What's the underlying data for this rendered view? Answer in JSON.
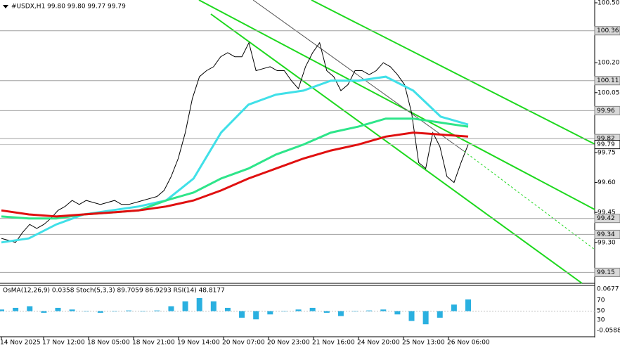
{
  "chart_data": {
    "type": "line",
    "title": "#USDX,H1  99.80 99.80 99.77 99.79",
    "series": [
      {
        "name": "close",
        "color": "#000000",
        "values": [
          99.32,
          99.31,
          99.3,
          99.35,
          99.39,
          99.37,
          99.39,
          99.42,
          99.46,
          99.48,
          99.51,
          99.49,
          99.51,
          99.5,
          99.49,
          99.5,
          99.51,
          99.49,
          99.49,
          99.5,
          99.51,
          99.52,
          99.53,
          99.56,
          99.63,
          99.72,
          99.85,
          100.02,
          100.13,
          100.16,
          100.18,
          100.23,
          100.25,
          100.23,
          100.23,
          100.3,
          100.16,
          100.17,
          100.18,
          100.16,
          100.16,
          100.11,
          100.07,
          100.18,
          100.25,
          100.3,
          100.16,
          100.13,
          100.06,
          100.09,
          100.16,
          100.16,
          100.14,
          100.16,
          100.2,
          100.18,
          100.14,
          100.09,
          99.95,
          99.7,
          99.67,
          99.85,
          99.78,
          99.63,
          99.6,
          99.7,
          99.79
        ]
      },
      {
        "name": "ma-fast",
        "color": "#40e0e8",
        "values": [
          99.3,
          99.32,
          99.39,
          99.44,
          99.46,
          99.48,
          99.51,
          99.62,
          99.85,
          99.99,
          100.04,
          100.06,
          100.11,
          100.11,
          100.13,
          100.06,
          99.93,
          99.89
        ]
      },
      {
        "name": "ma-mid",
        "color": "#2ee58a",
        "values": [
          99.43,
          99.42,
          99.42,
          99.44,
          99.45,
          99.46,
          99.51,
          99.55,
          99.62,
          99.67,
          99.74,
          99.79,
          99.85,
          99.88,
          99.92,
          99.92,
          99.9,
          99.88
        ]
      },
      {
        "name": "ma-slow",
        "color": "#e01010",
        "values": [
          99.46,
          99.44,
          99.43,
          99.44,
          99.45,
          99.46,
          99.48,
          99.51,
          99.56,
          99.62,
          99.67,
          99.72,
          99.76,
          99.79,
          99.83,
          99.85,
          99.84,
          99.83
        ]
      }
    ],
    "ylim": [
      99.095,
      100.514
    ],
    "yticks": [
      {
        "value": 100.5,
        "label": "100.50"
      },
      100.35,
      {
        "value": 100.2,
        "label": "100.20"
      },
      100.05,
      99.75,
      {
        "value": 99.6,
        "label": "99.60"
      },
      99.45,
      {
        "value": 99.3,
        "label": "99.30"
      }
    ],
    "levels": [
      100.36,
      100.11,
      99.96,
      99.82,
      99.42,
      99.34,
      99.15
    ],
    "current_price": 99.79,
    "x_labels": [
      "14 Nov 2025",
      "17 Nov 12:00",
      "18 Nov 05:00",
      "18 Nov 21:00",
      "19 Nov 14:00",
      "20 Nov 07:00",
      "20 Nov 23:00",
      "21 Nov 16:00",
      "24 Nov 20:00",
      "25 Nov 13:00",
      "26 Nov 06:00"
    ],
    "indicator": {
      "title": "OsMA(12,26,9) 0.0358 Stoch(5,3,3) 89.7059 86.9293 RSI(14) 48.8177",
      "color": "#2ab0e0",
      "values": [
        0.005,
        0.01,
        0.015,
        -0.005,
        0.01,
        0.005,
        0.0,
        -0.005,
        0.0,
        0.002,
        0.0,
        0.002,
        0.015,
        0.03,
        0.04,
        0.03,
        0.01,
        -0.02,
        -0.025,
        -0.01,
        0.0,
        0.005,
        0.01,
        -0.005,
        -0.015,
        0.0,
        0.002,
        0.005,
        -0.01,
        -0.03,
        -0.04,
        -0.02,
        0.02,
        0.0358
      ],
      "ylim": [
        -0.0588,
        0.0677
      ],
      "axis_labels": [
        "0.0677",
        "70",
        "50",
        "30",
        "-0.0588"
      ]
    }
  }
}
